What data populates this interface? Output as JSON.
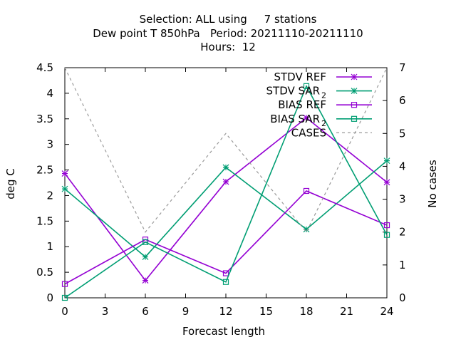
{
  "title_lines": [
    "Selection: ALL using     7 stations",
    "Dew point T 850hPa   Period: 20211110-20211110",
    "Hours:  12"
  ],
  "chart_data": {
    "type": "line",
    "xlabel": "Forecast length",
    "ylabel": "deg C",
    "y2label": "No cases",
    "xlim": [
      0,
      24
    ],
    "ylim": [
      0,
      4.5
    ],
    "y2lim": [
      0,
      7
    ],
    "xticks": [
      "0",
      "3",
      "6",
      "9",
      "12",
      "15",
      "18",
      "21",
      "24"
    ],
    "yticks": [
      "0",
      "0.5",
      "1",
      "1.5",
      "2",
      "2.5",
      "3",
      "3.5",
      "4",
      "4.5"
    ],
    "y2ticks": [
      "0",
      "1",
      "2",
      "3",
      "4",
      "5",
      "6",
      "7"
    ],
    "x": [
      0,
      6,
      12,
      18,
      24
    ],
    "grid": false,
    "legend_position": "top-right",
    "series": [
      {
        "name": "STDV REF",
        "label_sub": "",
        "axis": "y1",
        "marker": "star",
        "color": "#9400d3",
        "dash": false,
        "values": [
          2.43,
          0.34,
          2.27,
          3.52,
          2.26
        ]
      },
      {
        "name": "STDV SAR",
        "label_sub": "2",
        "axis": "y1",
        "marker": "star",
        "color": "#009e73",
        "dash": false,
        "values": [
          2.13,
          0.8,
          2.55,
          1.34,
          2.68
        ]
      },
      {
        "name": "BIAS REF",
        "label_sub": "",
        "axis": "y1",
        "marker": "square",
        "color": "#9400d3",
        "dash": false,
        "values": [
          0.27,
          1.14,
          0.48,
          2.09,
          1.42
        ]
      },
      {
        "name": "BIAS SAR",
        "label_sub": "2",
        "axis": "y1",
        "marker": "square",
        "color": "#009e73",
        "dash": false,
        "values": [
          0.0,
          1.09,
          0.31,
          4.14,
          1.23
        ]
      },
      {
        "name": "CASES",
        "label_sub": "",
        "axis": "y2",
        "marker": "none",
        "color": "#999999",
        "dash": true,
        "values": [
          7,
          2,
          5,
          2,
          7
        ]
      }
    ]
  }
}
